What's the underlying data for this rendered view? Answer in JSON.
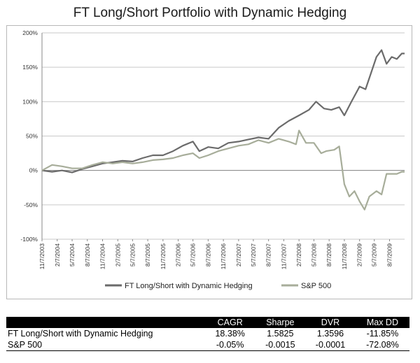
{
  "title": "FT Long/Short Portfolio with Dynamic Hedging",
  "chart_data": {
    "type": "line",
    "title": "FT Long/Short Portfolio with Dynamic Hedging",
    "xlabel": "",
    "ylabel": "",
    "x_range": [
      "11/7/2003",
      "11/6/2009"
    ],
    "ylim": [
      -100,
      200
    ],
    "y_ticks": [
      "200%",
      "150%",
      "100%",
      "50%",
      "0%",
      "-50%",
      "-100%"
    ],
    "x_ticks": [
      "11/7/2003",
      "2/7/2004",
      "5/7/2004",
      "8/7/2004",
      "11/7/2004",
      "2/7/2005",
      "5/7/2005",
      "8/7/2005",
      "11/7/2005",
      "2/7/2006",
      "5/7/2006",
      "8/7/2006",
      "11/7/2006",
      "2/7/2007",
      "5/7/2007",
      "8/7/2007",
      "11/7/2007",
      "2/7/2008",
      "5/7/2008",
      "8/7/2008",
      "11/7/2008",
      "2/7/2009",
      "5/7/2009",
      "8/7/2009"
    ],
    "grid": "horizontal",
    "legend": "bottom",
    "series": [
      {
        "name": "FT Long/Short with Dynamic Hedging",
        "color": "#6b6b6b",
        "x": [
          "2003-11-07",
          "2004-01-07",
          "2004-03-07",
          "2004-05-07",
          "2004-07-07",
          "2004-09-07",
          "2004-11-07",
          "2005-01-07",
          "2005-03-07",
          "2005-05-07",
          "2005-07-07",
          "2005-09-07",
          "2005-11-07",
          "2006-01-07",
          "2006-03-07",
          "2006-05-07",
          "2006-06-15",
          "2006-08-07",
          "2006-10-07",
          "2006-12-07",
          "2007-02-07",
          "2007-04-07",
          "2007-06-07",
          "2007-08-07",
          "2007-10-07",
          "2007-12-07",
          "2008-02-07",
          "2008-04-07",
          "2008-05-20",
          "2008-07-07",
          "2008-08-20",
          "2008-10-07",
          "2008-11-07",
          "2008-12-20",
          "2009-02-07",
          "2009-03-15",
          "2009-04-15",
          "2009-05-20",
          "2009-06-20",
          "2009-07-20",
          "2009-08-20",
          "2009-09-20",
          "2009-10-20",
          "2009-11-06"
        ],
        "values": [
          0,
          -2,
          0,
          -3,
          2,
          6,
          10,
          12,
          14,
          13,
          18,
          22,
          22,
          28,
          36,
          42,
          28,
          34,
          32,
          40,
          42,
          45,
          48,
          46,
          62,
          72,
          80,
          88,
          100,
          90,
          88,
          92,
          80,
          100,
          122,
          118,
          140,
          165,
          175,
          155,
          165,
          162,
          170,
          170
        ]
      },
      {
        "name": "S&P 500",
        "color": "#a7ad9a",
        "x": [
          "2003-11-07",
          "2004-01-07",
          "2004-03-07",
          "2004-05-07",
          "2004-07-07",
          "2004-09-07",
          "2004-11-07",
          "2005-01-07",
          "2005-03-07",
          "2005-05-07",
          "2005-07-07",
          "2005-09-07",
          "2005-11-07",
          "2006-01-07",
          "2006-03-07",
          "2006-05-07",
          "2006-06-15",
          "2006-08-07",
          "2006-10-07",
          "2006-12-07",
          "2007-02-07",
          "2007-04-07",
          "2007-06-07",
          "2007-08-07",
          "2007-10-07",
          "2007-12-07",
          "2008-01-20",
          "2008-02-07",
          "2008-03-20",
          "2008-05-07",
          "2008-06-20",
          "2008-07-20",
          "2008-09-07",
          "2008-10-07",
          "2008-11-07",
          "2008-12-07",
          "2009-01-07",
          "2009-02-07",
          "2009-03-09",
          "2009-04-07",
          "2009-05-20",
          "2009-06-20",
          "2009-07-20",
          "2009-08-20",
          "2009-09-20",
          "2009-10-20",
          "2009-11-06"
        ],
        "values": [
          0,
          8,
          6,
          3,
          3,
          8,
          12,
          10,
          12,
          10,
          12,
          15,
          16,
          18,
          22,
          25,
          18,
          22,
          28,
          32,
          36,
          38,
          44,
          40,
          46,
          42,
          38,
          58,
          40,
          40,
          25,
          28,
          30,
          35,
          -20,
          -38,
          -30,
          -45,
          -57,
          -38,
          -30,
          -35,
          -5,
          -5,
          -5,
          -2,
          -2
        ]
      }
    ]
  },
  "table": {
    "headers": [
      "",
      "CAGR",
      "Sharpe",
      "DVR",
      "Max DD"
    ],
    "rows": [
      [
        "FT Long/Short with Dynamic Hedging",
        "18.38%",
        "1.5825",
        "1.3596",
        "-11.85%"
      ],
      [
        "S&P 500",
        "-0.05%",
        "-0.0015",
        "-0.0001",
        "-72.08%"
      ]
    ]
  }
}
